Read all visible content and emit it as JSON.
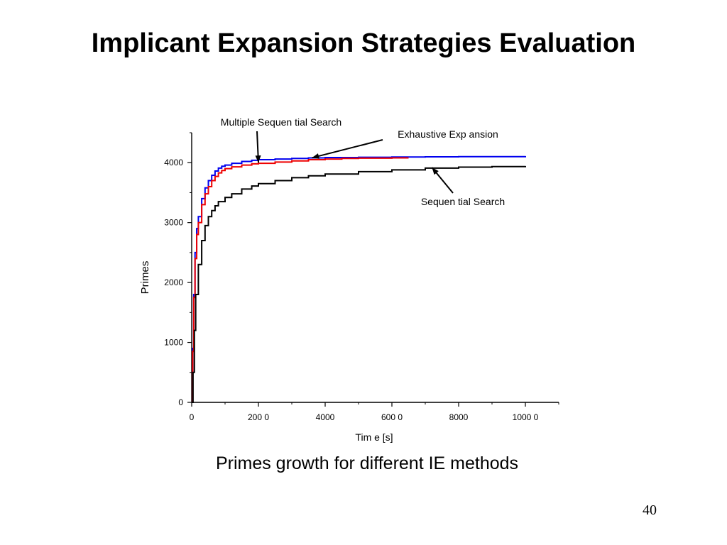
{
  "slide": {
    "title": "Implicant Expansion Strategies Evaluation",
    "caption": "Primes growth for different IE methods",
    "page_number": "40"
  },
  "chart_data": {
    "type": "line",
    "xlabel": "Tim e  [s]",
    "ylabel": "Primes",
    "xlim": [
      0,
      11000
    ],
    "ylim": [
      0,
      4500
    ],
    "xticks": [
      0,
      2000,
      4000,
      6000,
      8000,
      10000
    ],
    "xtick_labels": [
      "0",
      "200 0",
      "4000",
      "600 0",
      "8000",
      "1000 0"
    ],
    "yticks": [
      0,
      1000,
      2000,
      3000,
      4000
    ],
    "ytick_labels": [
      "0",
      "1000",
      "2000",
      "3000",
      "4000"
    ],
    "grid": false,
    "series": [
      {
        "name": "Multiple Sequen tial Search",
        "color": "#0000ee",
        "points": [
          [
            0,
            0
          ],
          [
            30,
            900
          ],
          [
            60,
            1800
          ],
          [
            100,
            2500
          ],
          [
            150,
            2900
          ],
          [
            200,
            3100
          ],
          [
            300,
            3400
          ],
          [
            400,
            3580
          ],
          [
            500,
            3700
          ],
          [
            600,
            3790
          ],
          [
            700,
            3860
          ],
          [
            800,
            3910
          ],
          [
            900,
            3940
          ],
          [
            1000,
            3960
          ],
          [
            1200,
            3990
          ],
          [
            1500,
            4020
          ],
          [
            1800,
            4040
          ],
          [
            2000,
            4050
          ],
          [
            2500,
            4060
          ],
          [
            3000,
            4070
          ],
          [
            3500,
            4080
          ],
          [
            4000,
            4085
          ],
          [
            5000,
            4090
          ],
          [
            6000,
            4095
          ],
          [
            7000,
            4098
          ],
          [
            8000,
            4100
          ],
          [
            9000,
            4100
          ],
          [
            10000,
            4110
          ]
        ]
      },
      {
        "name": "Exhaustive Exp ansion",
        "color": "#ee0000",
        "points": [
          [
            0,
            0
          ],
          [
            30,
            850
          ],
          [
            60,
            1750
          ],
          [
            100,
            2400
          ],
          [
            150,
            2800
          ],
          [
            200,
            3000
          ],
          [
            300,
            3300
          ],
          [
            400,
            3480
          ],
          [
            500,
            3600
          ],
          [
            600,
            3700
          ],
          [
            700,
            3770
          ],
          [
            800,
            3830
          ],
          [
            900,
            3870
          ],
          [
            1000,
            3900
          ],
          [
            1200,
            3930
          ],
          [
            1500,
            3960
          ],
          [
            1800,
            3980
          ],
          [
            2000,
            3990
          ],
          [
            2500,
            4010
          ],
          [
            3000,
            4030
          ],
          [
            3500,
            4050
          ],
          [
            4000,
            4060
          ],
          [
            4500,
            4070
          ],
          [
            5000,
            4075
          ],
          [
            6000,
            4080
          ],
          [
            6500,
            4080
          ]
        ]
      },
      {
        "name": "Sequen tial Search",
        "color": "#000000",
        "points": [
          [
            0,
            0
          ],
          [
            40,
            500
          ],
          [
            80,
            1200
          ],
          [
            120,
            1800
          ],
          [
            200,
            2300
          ],
          [
            300,
            2700
          ],
          [
            400,
            2950
          ],
          [
            500,
            3100
          ],
          [
            600,
            3200
          ],
          [
            700,
            3280
          ],
          [
            800,
            3350
          ],
          [
            1000,
            3420
          ],
          [
            1200,
            3480
          ],
          [
            1500,
            3560
          ],
          [
            1800,
            3610
          ],
          [
            2000,
            3650
          ],
          [
            2500,
            3700
          ],
          [
            3000,
            3750
          ],
          [
            3500,
            3780
          ],
          [
            4000,
            3810
          ],
          [
            5000,
            3850
          ],
          [
            6000,
            3880
          ],
          [
            7000,
            3910
          ],
          [
            8000,
            3925
          ],
          [
            9000,
            3935
          ],
          [
            10000,
            3945
          ]
        ]
      }
    ],
    "annotations": [
      {
        "text": "Multiple Sequen tial Search",
        "points_to": [
          2000,
          4000
        ]
      },
      {
        "text": "Exhaustive Exp ansion",
        "points_to": [
          3600,
          4080
        ]
      },
      {
        "text": "Sequen tial Search",
        "points_to": [
          7200,
          3920
        ]
      }
    ]
  }
}
